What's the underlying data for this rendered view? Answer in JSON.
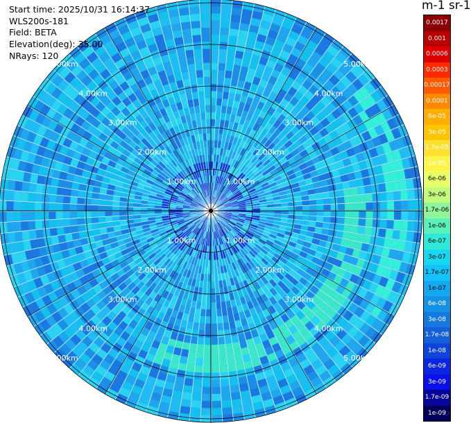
{
  "info": {
    "start_time": "Start time: 2025/10/31 16:14:37",
    "instrument": "WLS200s-181",
    "field": "Field: BETA",
    "elevation": "Elevation(deg): 35.00",
    "nrays": "NRays: 120"
  },
  "colorbar": {
    "title": "m-1 sr-1",
    "labels": [
      "0.0017",
      "0.001",
      "0.0006",
      "0.0003",
      "0.00017",
      "0.0001",
      "6e-05",
      "3e-05",
      "1.7e-05",
      "1e-05",
      "6e-06",
      "3e-06",
      "1.7e-06",
      "1e-06",
      "6e-07",
      "3e-07",
      "1.7e-07",
      "1e-07",
      "6e-08",
      "3e-08",
      "1.7e-08",
      "1e-08",
      "6e-09",
      "3e-09",
      "1.7e-09",
      "1e-09"
    ],
    "colors": [
      "#8b0000",
      "#b80000",
      "#e00000",
      "#ff2a00",
      "#ff5a00",
      "#ff8a00",
      "#ffae00",
      "#ffc400",
      "#ffe030",
      "#fff44a",
      "#e8ff6a",
      "#c4ff7c",
      "#90f59a",
      "#5af0ba",
      "#2ee8d8",
      "#18d8f0",
      "#12c2f8",
      "#13a8ef",
      "#1492e4",
      "#1478de",
      "#1460d8",
      "#0e44d8",
      "#0a26e0",
      "#0a10ec",
      "#06069a",
      "#000058"
    ]
  },
  "range_labels": [
    "1.00km",
    "2.00km",
    "3.00km",
    "4.00km",
    "5.00km"
  ],
  "rays": 120
}
